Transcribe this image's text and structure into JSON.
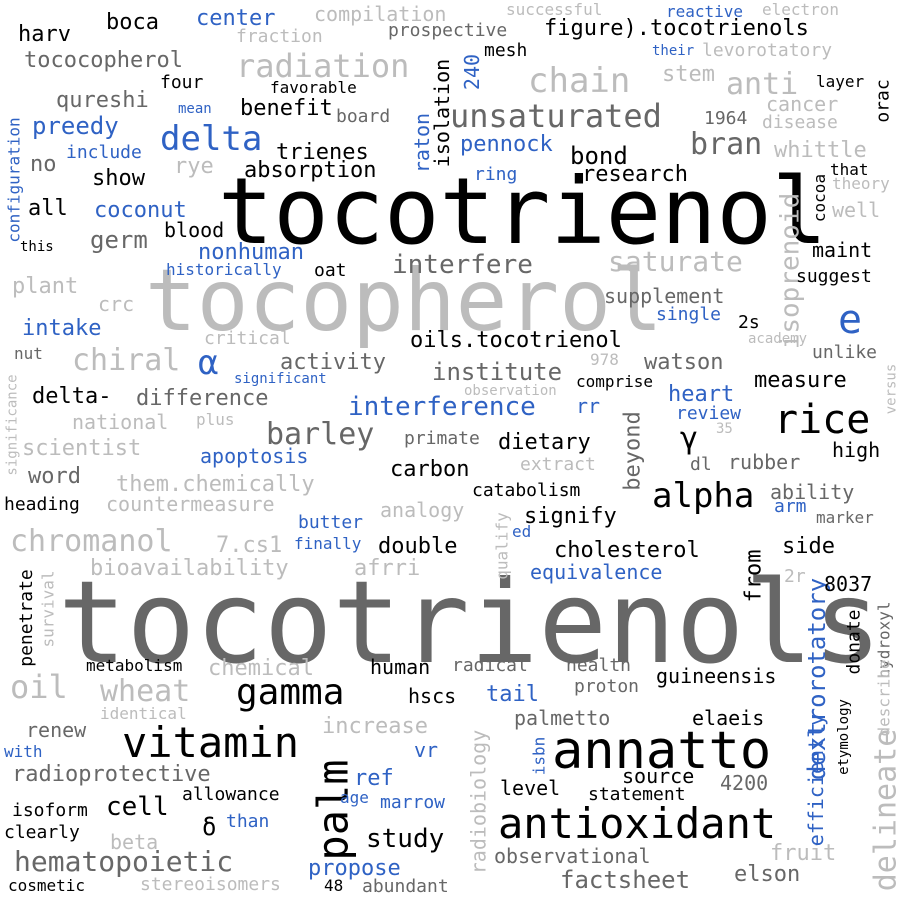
{
  "word_cloud": {
    "palette": {
      "black": "#000000",
      "dark_gray": "#676767",
      "light_gray": "#bcbcbc",
      "blue": "#2f62c4",
      "background": "#ffffff"
    },
    "words": [
      {
        "text": "tocotrienols",
        "color": "dark_gray"
      },
      {
        "text": "tocotrienol",
        "color": "black"
      },
      {
        "text": "tocopherol",
        "color": "light_gray"
      },
      {
        "text": "annatto",
        "color": "black"
      },
      {
        "text": "antioxidant",
        "color": "black"
      },
      {
        "text": "vitamin",
        "color": "black"
      },
      {
        "text": "palm",
        "color": "black"
      },
      {
        "text": "gamma",
        "color": "black"
      },
      {
        "text": "rice",
        "color": "black"
      },
      {
        "text": "alpha",
        "color": "black"
      },
      {
        "text": "e",
        "color": "blue"
      },
      {
        "text": "delta",
        "color": "blue"
      },
      {
        "text": "chain",
        "color": "light_gray"
      },
      {
        "text": "radiation",
        "color": "light_gray"
      },
      {
        "text": "unsaturated",
        "color": "dark_gray"
      },
      {
        "text": "saturate",
        "color": "light_gray"
      },
      {
        "text": "hematopoietic",
        "color": "dark_gray"
      },
      {
        "text": "chromanol",
        "color": "light_gray"
      },
      {
        "text": "oil",
        "color": "light_gray"
      },
      {
        "text": "wheat",
        "color": "light_gray"
      },
      {
        "text": "chiral",
        "color": "light_gray"
      },
      {
        "text": "barley",
        "color": "dark_gray"
      },
      {
        "text": "delineate",
        "color": "light_gray"
      },
      {
        "text": "isoprenoid",
        "color": "light_gray"
      },
      {
        "text": "bran",
        "color": "dark_gray"
      },
      {
        "text": "anti",
        "color": "light_gray"
      },
      {
        "text": "interfere",
        "color": "dark_gray"
      },
      {
        "text": "interference",
        "color": "blue"
      },
      {
        "text": "study",
        "color": "black"
      },
      {
        "text": "cell",
        "color": "black"
      },
      {
        "text": "factsheet",
        "color": "dark_gray"
      },
      {
        "text": "dextrorotatory",
        "color": "blue"
      },
      {
        "text": "γ",
        "color": "black"
      },
      {
        "text": "α",
        "color": "blue"
      },
      {
        "text": "δ",
        "color": "black"
      },
      {
        "text": "oils.tocotrienol",
        "color": "black"
      },
      {
        "text": "figure).tocotrienols",
        "color": "black"
      },
      {
        "text": "institute",
        "color": "dark_gray"
      },
      {
        "text": "absorption",
        "color": "black"
      },
      {
        "text": "trienes",
        "color": "black"
      },
      {
        "text": "research",
        "color": "black"
      },
      {
        "text": "bond",
        "color": "black"
      },
      {
        "text": "pennock",
        "color": "blue"
      },
      {
        "text": "preedy",
        "color": "blue"
      },
      {
        "text": "benefit",
        "color": "black"
      },
      {
        "text": "coconut",
        "color": "blue"
      },
      {
        "text": "germ",
        "color": "dark_gray"
      },
      {
        "text": "blood",
        "color": "black"
      },
      {
        "text": "nonhuman",
        "color": "blue"
      },
      {
        "text": "supplement",
        "color": "dark_gray"
      },
      {
        "text": "measure",
        "color": "black"
      },
      {
        "text": "watson",
        "color": "dark_gray"
      },
      {
        "text": "heart",
        "color": "blue"
      },
      {
        "text": "review",
        "color": "blue"
      },
      {
        "text": "dietary",
        "color": "black"
      },
      {
        "text": "carbon",
        "color": "black"
      },
      {
        "text": "catabolism",
        "color": "black"
      },
      {
        "text": "signify",
        "color": "black"
      },
      {
        "text": "double",
        "color": "black"
      },
      {
        "text": "cholesterol",
        "color": "black"
      },
      {
        "text": "equivalence",
        "color": "blue"
      },
      {
        "text": "side",
        "color": "black"
      },
      {
        "text": "8037",
        "color": "black"
      },
      {
        "text": "from",
        "color": "black"
      },
      {
        "text": "beyond",
        "color": "dark_gray"
      },
      {
        "text": "rubber",
        "color": "dark_gray"
      },
      {
        "text": "high",
        "color": "black"
      },
      {
        "text": "ability",
        "color": "dark_gray"
      },
      {
        "text": "marker",
        "color": "dark_gray"
      },
      {
        "text": "human",
        "color": "black"
      },
      {
        "text": "radical",
        "color": "dark_gray"
      },
      {
        "text": "health",
        "color": "dark_gray"
      },
      {
        "text": "proton",
        "color": "dark_gray"
      },
      {
        "text": "guineensis",
        "color": "black"
      },
      {
        "text": "hscs",
        "color": "black"
      },
      {
        "text": "tail",
        "color": "blue"
      },
      {
        "text": "palmetto",
        "color": "dark_gray"
      },
      {
        "text": "elaeis",
        "color": "black"
      },
      {
        "text": "source",
        "color": "black"
      },
      {
        "text": "4200",
        "color": "dark_gray"
      },
      {
        "text": "level",
        "color": "black"
      },
      {
        "text": "statement",
        "color": "black"
      },
      {
        "text": "ref",
        "color": "blue"
      },
      {
        "text": "marrow",
        "color": "blue"
      },
      {
        "text": "age",
        "color": "blue"
      },
      {
        "text": "allowance",
        "color": "black"
      },
      {
        "text": "than",
        "color": "blue"
      },
      {
        "text": "propose",
        "color": "blue"
      },
      {
        "text": "abundant",
        "color": "dark_gray"
      },
      {
        "text": "48",
        "color": "black"
      },
      {
        "text": "observational",
        "color": "dark_gray"
      },
      {
        "text": "elson",
        "color": "dark_gray"
      },
      {
        "text": "fruit",
        "color": "light_gray"
      },
      {
        "text": "radioprotective",
        "color": "dark_gray"
      },
      {
        "text": "renew",
        "color": "dark_gray"
      },
      {
        "text": "increase",
        "color": "light_gray"
      },
      {
        "text": "vr",
        "color": "blue"
      },
      {
        "text": "metabolism",
        "color": "black"
      },
      {
        "text": "chemical",
        "color": "light_gray"
      },
      {
        "text": "identical",
        "color": "light_gray"
      },
      {
        "text": "with",
        "color": "blue"
      },
      {
        "text": "isoform",
        "color": "black"
      },
      {
        "text": "clearly",
        "color": "black"
      },
      {
        "text": "beta",
        "color": "light_gray"
      },
      {
        "text": "cosmetic",
        "color": "black"
      },
      {
        "text": "stereoisomers",
        "color": "light_gray"
      },
      {
        "text": "penetrate",
        "color": "black"
      },
      {
        "text": "survival",
        "color": "light_gray"
      },
      {
        "text": "bioavailability",
        "color": "light_gray"
      },
      {
        "text": "afrri",
        "color": "light_gray"
      },
      {
        "text": "7.cs1",
        "color": "light_gray"
      },
      {
        "text": "butter",
        "color": "blue"
      },
      {
        "text": "finally",
        "color": "blue"
      },
      {
        "text": "ed",
        "color": "blue"
      },
      {
        "text": "qualify",
        "color": "light_gray"
      },
      {
        "text": "countermeasure",
        "color": "light_gray"
      },
      {
        "text": "analogy",
        "color": "light_gray"
      },
      {
        "text": "them.chemically",
        "color": "light_gray"
      },
      {
        "text": "heading",
        "color": "black"
      },
      {
        "text": "word",
        "color": "dark_gray"
      },
      {
        "text": "scientist",
        "color": "light_gray"
      },
      {
        "text": "apoptosis",
        "color": "blue"
      },
      {
        "text": "extract",
        "color": "light_gray"
      },
      {
        "text": "primate",
        "color": "dark_gray"
      },
      {
        "text": "national",
        "color": "light_gray"
      },
      {
        "text": "plus",
        "color": "light_gray"
      },
      {
        "text": "difference",
        "color": "dark_gray"
      },
      {
        "text": "delta-",
        "color": "black"
      },
      {
        "text": "activity",
        "color": "dark_gray"
      },
      {
        "text": "significant",
        "color": "blue"
      },
      {
        "text": "critical",
        "color": "light_gray"
      },
      {
        "text": "intake",
        "color": "blue"
      },
      {
        "text": "nut",
        "color": "dark_gray"
      },
      {
        "text": "crc",
        "color": "light_gray"
      },
      {
        "text": "plant",
        "color": "light_gray"
      },
      {
        "text": "significance",
        "color": "light_gray"
      },
      {
        "text": "oat",
        "color": "black"
      },
      {
        "text": "historically",
        "color": "blue"
      },
      {
        "text": "all",
        "color": "black"
      },
      {
        "text": "this",
        "color": "black"
      },
      {
        "text": "configuration",
        "color": "blue"
      },
      {
        "text": "show",
        "color": "black"
      },
      {
        "text": "no",
        "color": "dark_gray"
      },
      {
        "text": "include",
        "color": "blue"
      },
      {
        "text": "rye",
        "color": "light_gray"
      },
      {
        "text": "ring",
        "color": "blue"
      },
      {
        "text": "raton",
        "color": "blue"
      },
      {
        "text": "isolation",
        "color": "black"
      },
      {
        "text": "240",
        "color": "blue"
      },
      {
        "text": "mesh",
        "color": "black"
      },
      {
        "text": "qureshi",
        "color": "dark_gray"
      },
      {
        "text": "mean",
        "color": "blue"
      },
      {
        "text": "board",
        "color": "dark_gray"
      },
      {
        "text": "favorable",
        "color": "black"
      },
      {
        "text": "four",
        "color": "black"
      },
      {
        "text": "tococopherol",
        "color": "dark_gray"
      },
      {
        "text": "harv",
        "color": "black"
      },
      {
        "text": "boca",
        "color": "black"
      },
      {
        "text": "center",
        "color": "blue"
      },
      {
        "text": "fraction",
        "color": "light_gray"
      },
      {
        "text": "compilation",
        "color": "light_gray"
      },
      {
        "text": "prospective",
        "color": "dark_gray"
      },
      {
        "text": "successful",
        "color": "light_gray"
      },
      {
        "text": "reactive",
        "color": "blue"
      },
      {
        "text": "electron",
        "color": "light_gray"
      },
      {
        "text": "their",
        "color": "blue"
      },
      {
        "text": "levorotatory",
        "color": "light_gray"
      },
      {
        "text": "stem",
        "color": "light_gray"
      },
      {
        "text": "layer",
        "color": "black"
      },
      {
        "text": "orac",
        "color": "black"
      },
      {
        "text": "cancer",
        "color": "light_gray"
      },
      {
        "text": "1964",
        "color": "dark_gray"
      },
      {
        "text": "disease",
        "color": "light_gray"
      },
      {
        "text": "whittle",
        "color": "light_gray"
      },
      {
        "text": "that",
        "color": "black"
      },
      {
        "text": "theory",
        "color": "light_gray"
      },
      {
        "text": "cocoa",
        "color": "black"
      },
      {
        "text": "well",
        "color": "light_gray"
      },
      {
        "text": "maint",
        "color": "black"
      },
      {
        "text": "suggest",
        "color": "black"
      },
      {
        "text": "single",
        "color": "blue"
      },
      {
        "text": "2s",
        "color": "black"
      },
      {
        "text": "academy",
        "color": "light_gray"
      },
      {
        "text": "unlike",
        "color": "dark_gray"
      },
      {
        "text": "versus",
        "color": "light_gray"
      },
      {
        "text": "978",
        "color": "light_gray"
      },
      {
        "text": "comprise",
        "color": "black"
      },
      {
        "text": "observation",
        "color": "light_gray"
      },
      {
        "text": "rr",
        "color": "blue"
      },
      {
        "text": "35",
        "color": "light_gray"
      },
      {
        "text": "dl",
        "color": "dark_gray"
      },
      {
        "text": "arm",
        "color": "blue"
      },
      {
        "text": "2r",
        "color": "light_gray"
      },
      {
        "text": "donate",
        "color": "black"
      },
      {
        "text": "hydroxyl",
        "color": "dark_gray"
      },
      {
        "text": "describe",
        "color": "light_gray"
      },
      {
        "text": "etymology",
        "color": "black"
      },
      {
        "text": "efficiently",
        "color": "blue"
      },
      {
        "text": "radiobiology",
        "color": "light_gray"
      },
      {
        "text": "isbn",
        "color": "blue"
      }
    ]
  }
}
